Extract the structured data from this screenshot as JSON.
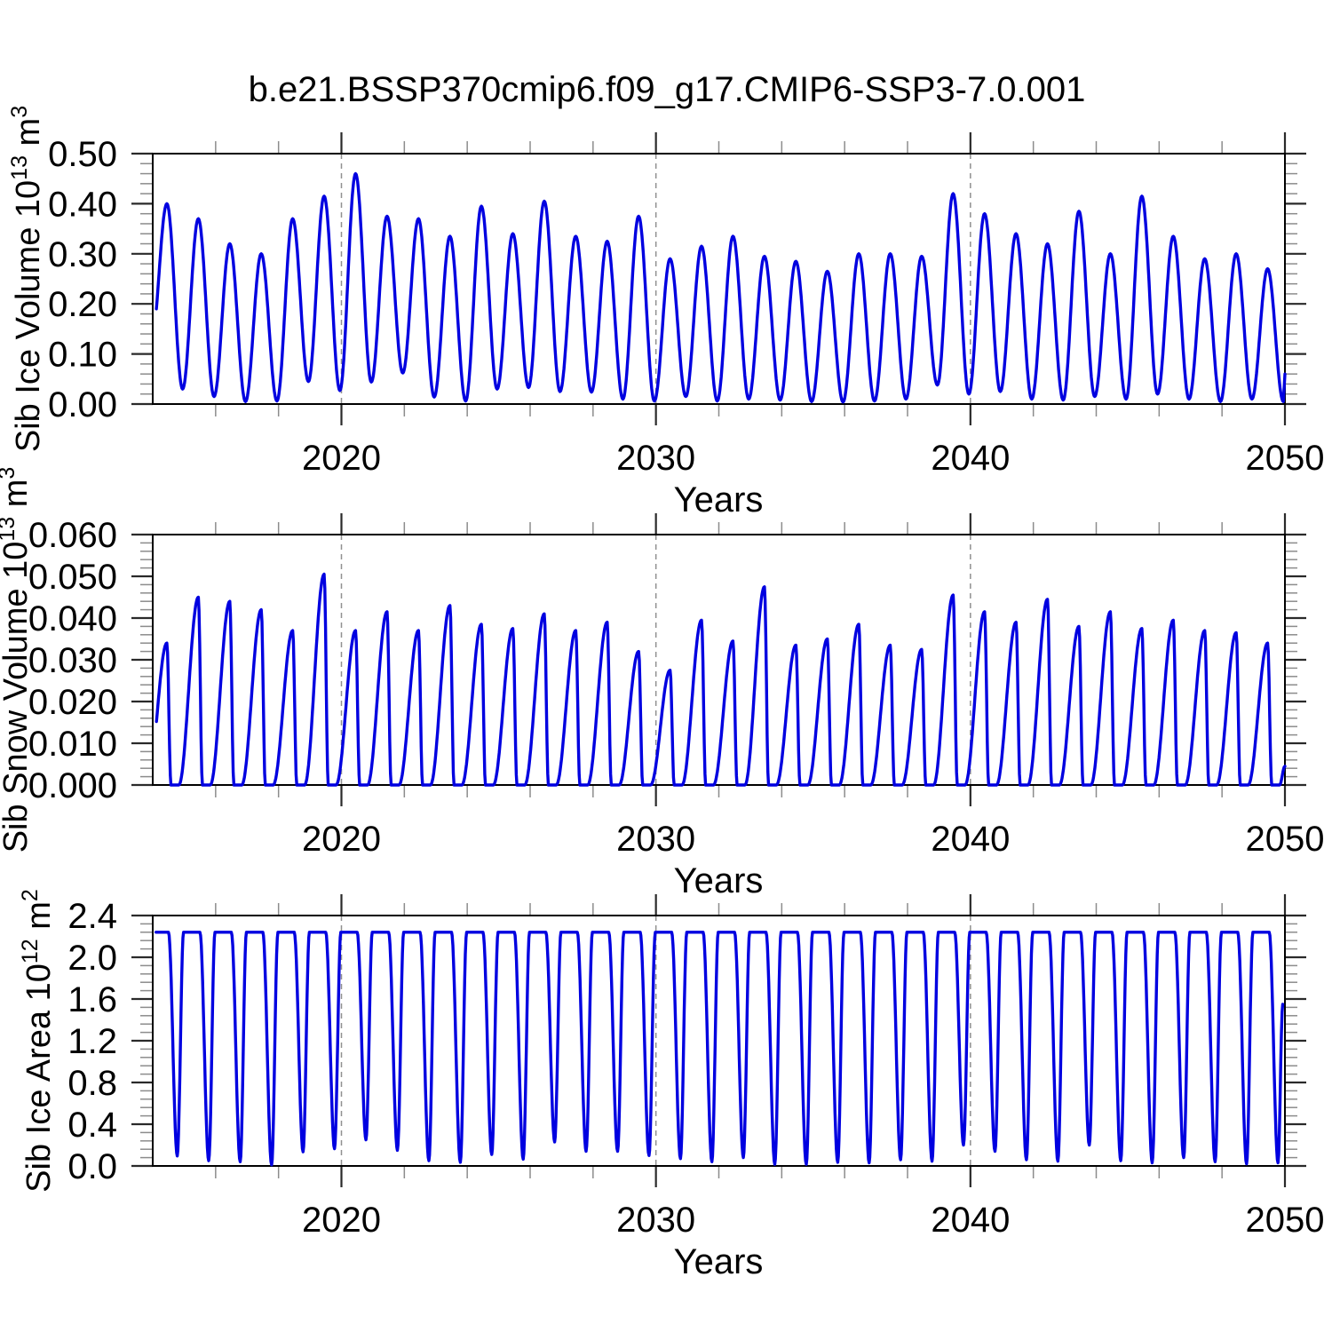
{
  "title": "b.e21.BSSP370cmip6.f09_g17.CMIP6-SSP3-7.0.001",
  "colors": {
    "line": "#0000e0",
    "frame": "#000000",
    "major_tick": "#2a2a2a",
    "minor_tick": "#8c8c8c",
    "grid_dash": "#909090",
    "text": "#000000",
    "background": "#ffffff"
  },
  "x_axis": {
    "label": "Years",
    "range": [
      2014,
      2050
    ],
    "major_ticks": [
      2020,
      2030,
      2040,
      2050
    ],
    "major_tick_labels": [
      "2020",
      "2030",
      "2040",
      "2050"
    ],
    "minor_tick_step": 2,
    "dashed_gridlines": [
      2020,
      2030,
      2040
    ]
  },
  "chart_data": [
    {
      "type": "line",
      "id": "sib-ice-volume",
      "xlabel": "Years",
      "ylabel": {
        "prefix": "Sib Ice Volume 10",
        "exponent": "13",
        "unit": " m",
        "unit_exponent": "3"
      },
      "ylim": [
        0,
        0.5
      ],
      "y_major_ticks": [
        0,
        0.1,
        0.2,
        0.3,
        0.4,
        0.5
      ],
      "y_major_tick_labels": [
        "0.00",
        "0.10",
        "0.20",
        "0.30",
        "0.40",
        "0.50"
      ],
      "y_minor_step": 0.02,
      "grid": false,
      "legend": "none",
      "waveform": "sinusoid",
      "annual_cycle": {
        "years_start": 2014,
        "peak_phase": 0.45,
        "min_phase": 0.95,
        "pre_min": 0.12,
        "peaks": [
          0.4,
          0.37,
          0.32,
          0.3,
          0.37,
          0.415,
          0.46,
          0.375,
          0.37,
          0.335,
          0.395,
          0.34,
          0.405,
          0.335,
          0.325,
          0.375,
          0.29,
          0.315,
          0.335,
          0.295,
          0.285,
          0.265,
          0.3,
          0.3,
          0.295,
          0.42,
          0.38,
          0.34,
          0.32,
          0.385,
          0.3,
          0.415,
          0.335,
          0.29,
          0.3,
          0.27
        ],
        "mins": [
          0.03,
          0.015,
          0.005,
          0.006,
          0.045,
          0.027,
          0.044,
          0.062,
          0.014,
          0.006,
          0.03,
          0.033,
          0.025,
          0.024,
          0.01,
          0.006,
          0.015,
          0.006,
          0.01,
          0.008,
          0.005,
          0.004,
          0.006,
          0.01,
          0.038,
          0.02,
          0.025,
          0.01,
          0.008,
          0.015,
          0.01,
          0.02,
          0.01,
          0.005,
          0.01,
          0.005
        ],
        "start": {
          "t": 2014.1
        },
        "end": {
          "t": 2050.0,
          "value": 0.06
        }
      }
    },
    {
      "type": "line",
      "id": "sib-snow-volume",
      "xlabel": "Years",
      "ylabel": {
        "prefix": "Sib Snow Volume 10",
        "exponent": "13",
        "unit": " m",
        "unit_exponent": "3"
      },
      "ylim": [
        0,
        0.06
      ],
      "y_major_ticks": [
        0,
        0.01,
        0.02,
        0.03,
        0.04,
        0.05,
        0.06
      ],
      "y_major_tick_labels": [
        "0.000",
        "0.010",
        "0.020",
        "0.030",
        "0.040",
        "0.050",
        "0.060"
      ],
      "y_minor_step": 0.002,
      "grid": false,
      "legend": "none",
      "waveform": "snow",
      "annual_cycle": {
        "years_start": 2014,
        "peak_phase": 0.45,
        "zero_start_phase": 0.58,
        "zero_end_phase": 0.83,
        "peaks": [
          0.034,
          0.045,
          0.044,
          0.042,
          0.037,
          0.0505,
          0.037,
          0.0415,
          0.037,
          0.043,
          0.0385,
          0.0375,
          0.041,
          0.037,
          0.039,
          0.032,
          0.0275,
          0.0395,
          0.0345,
          0.0475,
          0.0335,
          0.035,
          0.0385,
          0.0335,
          0.0325,
          0.0455,
          0.0415,
          0.039,
          0.0445,
          0.038,
          0.0415,
          0.0375,
          0.0395,
          0.037,
          0.0365,
          0.034
        ],
        "mins": [
          0,
          0,
          0,
          0,
          0,
          0,
          0,
          0,
          0,
          0,
          0,
          0,
          0,
          0,
          0,
          0,
          0,
          0,
          0,
          0,
          0,
          0,
          0,
          0,
          0,
          0,
          0,
          0,
          0,
          0,
          0,
          0,
          0,
          0,
          0,
          0
        ],
        "start": {
          "t": 2014.1
        },
        "end": {
          "t": 2050.0,
          "value": 0.0045
        }
      }
    },
    {
      "type": "line",
      "id": "sib-ice-area",
      "xlabel": "Years",
      "ylabel": {
        "prefix": "Sib Ice Area 10",
        "exponent": "12",
        "unit": " m",
        "unit_exponent": "2"
      },
      "ylim": [
        0,
        2.4
      ],
      "y_major_ticks": [
        0,
        0.4,
        0.8,
        1.2,
        1.6,
        2.0,
        2.4
      ],
      "y_major_tick_labels": [
        "0.0",
        "0.4",
        "0.8",
        "1.2",
        "1.6",
        "2.0",
        "2.4"
      ],
      "y_minor_step": 0.08,
      "grid": false,
      "legend": "none",
      "waveform": "plateau",
      "annual_cycle": {
        "years_start": 2014,
        "plateau": 2.24,
        "fall_start_phase": 0.5,
        "dip_phase": 0.78,
        "rise_end_phase": 0.98,
        "dips": [
          0.095,
          0.05,
          0.04,
          0.01,
          0.135,
          0.165,
          0.25,
          0.15,
          0.05,
          0.035,
          0.11,
          0.065,
          0.23,
          0.14,
          0.14,
          0.1,
          0.07,
          0.04,
          0.08,
          0.015,
          0.015,
          0.035,
          0.03,
          0.06,
          0.045,
          0.2,
          0.14,
          0.06,
          0.045,
          0.2,
          0.05,
          0.03,
          0.08,
          0.04,
          0.02,
          0.03
        ],
        "start": {
          "t": 2014.1
        },
        "end": {
          "t": 2049.93,
          "value": 1.55
        }
      }
    }
  ]
}
